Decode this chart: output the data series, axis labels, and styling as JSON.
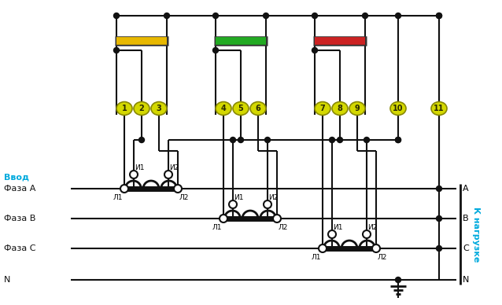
{
  "bg_color": "#ffffff",
  "terminal_color": "#d4d800",
  "terminal_border": "#888800",
  "fuse_yellow": "#e8b800",
  "fuse_green": "#22aa22",
  "fuse_red": "#cc2222",
  "line_color": "#111111",
  "label_color_vvod": "#00aadd",
  "label_color_nagruzke": "#00aadd",
  "terminal_numbers": [
    "1",
    "2",
    "3",
    "4",
    "5",
    "6",
    "7",
    "8",
    "9",
    "10",
    "11"
  ],
  "left_labels": [
    "Ввод",
    "Фаза А",
    "Фаза В",
    "Фаза С",
    "N"
  ],
  "right_labels": [
    "А",
    "В",
    "С",
    "N"
  ],
  "right_label_rotated": "К нагрузке"
}
